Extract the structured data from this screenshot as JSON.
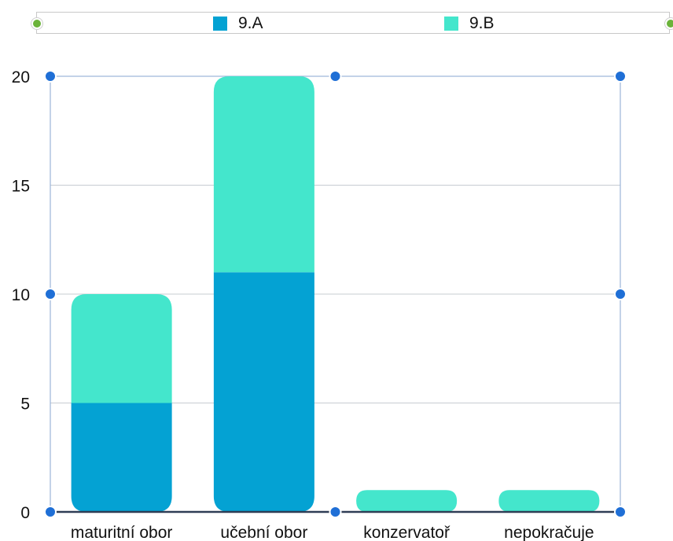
{
  "colors": {
    "series_a": "#04a2d3",
    "series_b": "#44e6cc",
    "grid": "#c7ccd2",
    "baseline": "#2f3d55",
    "frame": "#9bb4d8",
    "handle": "#1f6fd6",
    "legend_handle": "#6bb33a"
  },
  "chart_data": {
    "type": "bar",
    "stacked": true,
    "categories": [
      "maturitní obor",
      "učební obor",
      "konzervatoř",
      "nepokračuje"
    ],
    "series": [
      {
        "name": "9.A",
        "values": [
          5,
          11,
          0,
          0
        ]
      },
      {
        "name": "9.B",
        "values": [
          5,
          9,
          1,
          1
        ]
      }
    ],
    "ylim": [
      0,
      20
    ],
    "yticks": [
      0,
      5,
      10,
      15,
      20
    ],
    "ytick_labels": [
      "0",
      "5",
      "10",
      "15",
      "20"
    ],
    "grid": true,
    "legend": "top",
    "title": "",
    "xlabel": "",
    "ylabel": ""
  }
}
